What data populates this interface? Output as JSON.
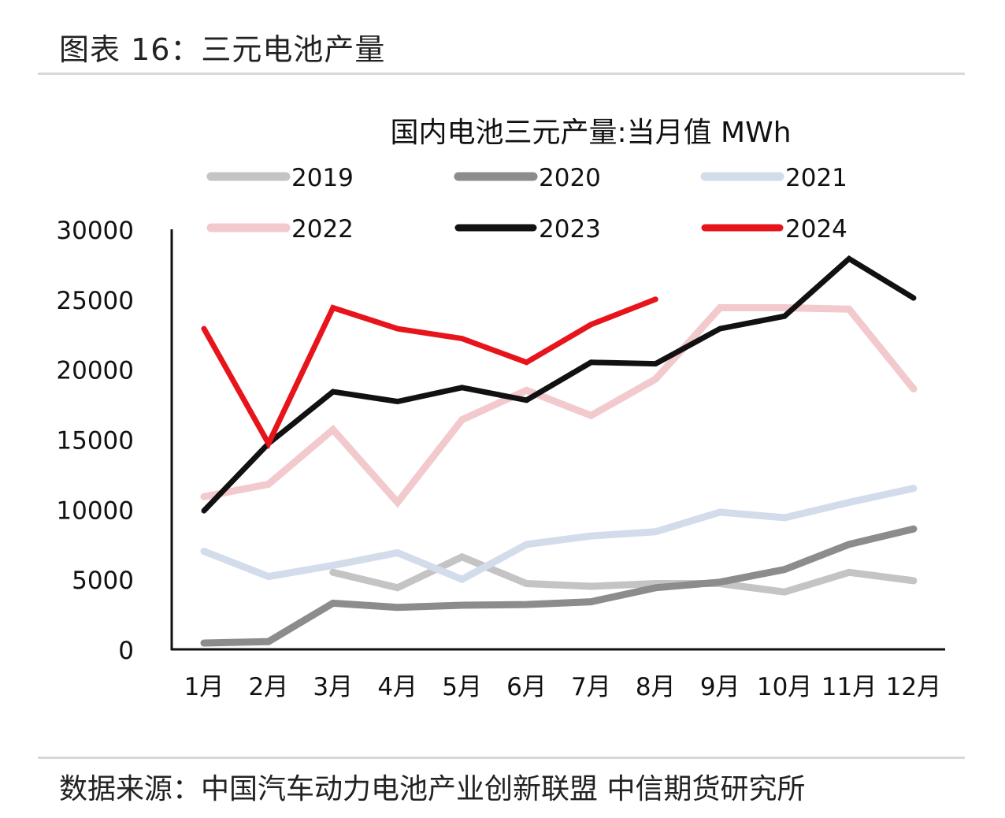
{
  "figure_title": "图表 16：三元电池产量",
  "source": "数据来源：中国汽车动力电池产业创新联盟  中信期货研究所",
  "chart_data": {
    "type": "line",
    "title": "国内电池三元产量:当月值 MWh",
    "xlabel": "",
    "ylabel": "",
    "categories": [
      "1月",
      "2月",
      "3月",
      "4月",
      "5月",
      "6月",
      "7月",
      "8月",
      "9月",
      "10月",
      "11月",
      "12月"
    ],
    "ylim": [
      0,
      30000
    ],
    "yticks": [
      0,
      5000,
      10000,
      15000,
      20000,
      25000,
      30000
    ],
    "grid": false,
    "legend": "top",
    "series": [
      {
        "name": "2019",
        "color": "#c4c4c4",
        "values": [
          null,
          null,
          5500,
          4400,
          6600,
          4700,
          4500,
          4700,
          4700,
          4100,
          5500,
          4900
        ]
      },
      {
        "name": "2020",
        "color": "#8c8c8c",
        "values": [
          450,
          560,
          3300,
          3000,
          3150,
          3200,
          3400,
          4400,
          4800,
          5700,
          7500,
          8600
        ]
      },
      {
        "name": "2021",
        "color": "#d3dceb",
        "values": [
          7000,
          5200,
          6000,
          6900,
          5000,
          7500,
          8100,
          8400,
          9800,
          9400,
          10500,
          11500
        ]
      },
      {
        "name": "2022",
        "color": "#f2c9cc",
        "values": [
          10900,
          11800,
          15700,
          10500,
          16400,
          18500,
          16700,
          19300,
          24400,
          24400,
          24300,
          18600
        ]
      },
      {
        "name": "2023",
        "color": "#111111",
        "values": [
          9900,
          14700,
          18400,
          17700,
          18700,
          17800,
          20500,
          20400,
          22900,
          23800,
          27900,
          25100
        ]
      },
      {
        "name": "2024",
        "color": "#e8141b",
        "values": [
          22900,
          14700,
          24400,
          22900,
          22200,
          20500,
          23200,
          25000,
          null,
          null,
          null,
          null
        ]
      }
    ]
  }
}
